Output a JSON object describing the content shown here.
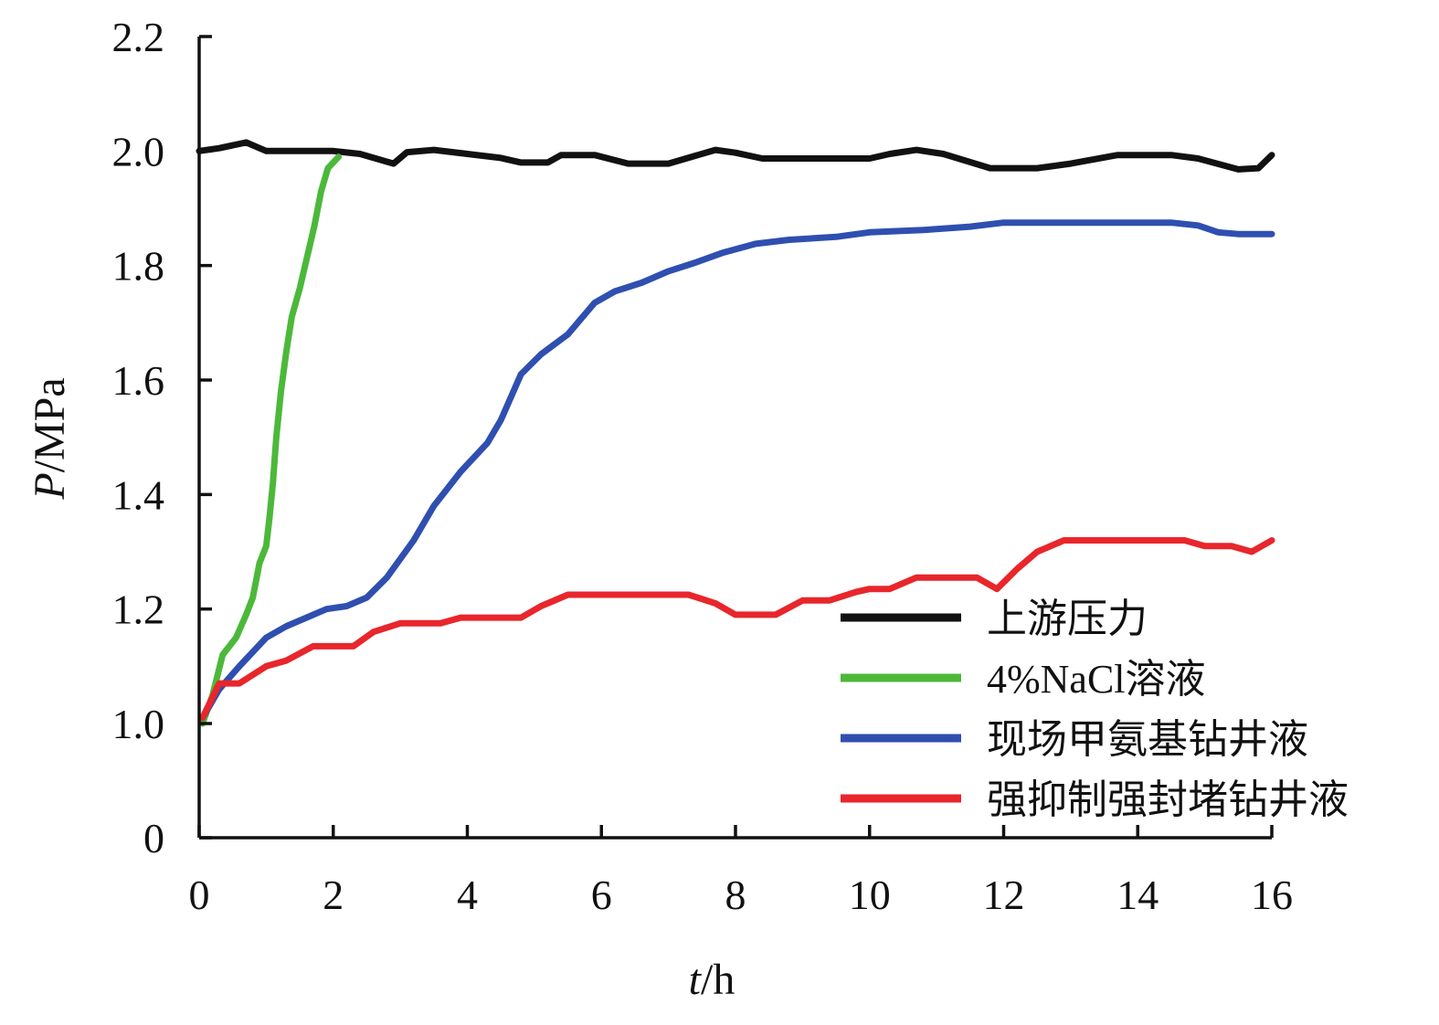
{
  "chart_data": {
    "type": "line",
    "title": "",
    "xlabel": {
      "var": "t",
      "unit": "/h"
    },
    "ylabel": {
      "var": "P",
      "unit": "/MPa"
    },
    "xlim": [
      0,
      16
    ],
    "xticks": [
      "0",
      "2",
      "4",
      "6",
      "8",
      "10",
      "12",
      "14",
      "16"
    ],
    "ylim_display": [
      0,
      2.2
    ],
    "axis_break_note": "y axis shows 0 then jumps to 1.0",
    "yticks": [
      "0",
      "1.0",
      "1.2",
      "1.4",
      "1.6",
      "1.8",
      "2.0",
      "2.2"
    ],
    "grid": false,
    "legend": {
      "position": "bottom-right"
    },
    "series": [
      {
        "name": "上游压力",
        "color": "#111111",
        "points": [
          [
            0,
            2.0
          ],
          [
            0.3,
            2.005
          ],
          [
            0.7,
            2.015
          ],
          [
            1.0,
            2.0
          ],
          [
            1.5,
            2.0
          ],
          [
            2.0,
            2.0
          ],
          [
            2.4,
            1.995
          ],
          [
            2.9,
            1.978
          ],
          [
            3.1,
            1.998
          ],
          [
            3.5,
            2.002
          ],
          [
            4.0,
            1.995
          ],
          [
            4.5,
            1.988
          ],
          [
            4.8,
            1.98
          ],
          [
            5.2,
            1.98
          ],
          [
            5.4,
            1.993
          ],
          [
            5.9,
            1.993
          ],
          [
            6.4,
            1.978
          ],
          [
            7.0,
            1.978
          ],
          [
            7.7,
            2.002
          ],
          [
            8.0,
            1.997
          ],
          [
            8.4,
            1.987
          ],
          [
            9.0,
            1.987
          ],
          [
            10.0,
            1.987
          ],
          [
            10.3,
            1.995
          ],
          [
            10.7,
            2.002
          ],
          [
            11.1,
            1.995
          ],
          [
            11.8,
            1.97
          ],
          [
            12.5,
            1.97
          ],
          [
            13.0,
            1.978
          ],
          [
            13.7,
            1.993
          ],
          [
            14.5,
            1.993
          ],
          [
            14.9,
            1.987
          ],
          [
            15.5,
            1.968
          ],
          [
            15.8,
            1.97
          ],
          [
            16.0,
            1.993
          ]
        ]
      },
      {
        "name": "4%NaCl溶液",
        "color": "#4cb83a",
        "points": [
          [
            0.05,
            1.0
          ],
          [
            0.2,
            1.05
          ],
          [
            0.35,
            1.12
          ],
          [
            0.55,
            1.15
          ],
          [
            0.7,
            1.19
          ],
          [
            0.8,
            1.22
          ],
          [
            0.9,
            1.28
          ],
          [
            1.0,
            1.31
          ],
          [
            1.05,
            1.36
          ],
          [
            1.1,
            1.42
          ],
          [
            1.15,
            1.5
          ],
          [
            1.22,
            1.58
          ],
          [
            1.3,
            1.65
          ],
          [
            1.38,
            1.71
          ],
          [
            1.5,
            1.76
          ],
          [
            1.62,
            1.82
          ],
          [
            1.72,
            1.87
          ],
          [
            1.82,
            1.93
          ],
          [
            1.92,
            1.97
          ],
          [
            2.08,
            1.99
          ]
        ]
      },
      {
        "name": "现场甲氨基钻井液",
        "color": "#2f4fb0",
        "points": [
          [
            0.05,
            1.01
          ],
          [
            0.3,
            1.06
          ],
          [
            0.6,
            1.1
          ],
          [
            1.0,
            1.15
          ],
          [
            1.3,
            1.17
          ],
          [
            1.6,
            1.185
          ],
          [
            1.9,
            1.2
          ],
          [
            2.2,
            1.205
          ],
          [
            2.5,
            1.22
          ],
          [
            2.8,
            1.255
          ],
          [
            3.2,
            1.32
          ],
          [
            3.5,
            1.38
          ],
          [
            3.9,
            1.44
          ],
          [
            4.3,
            1.49
          ],
          [
            4.5,
            1.53
          ],
          [
            4.8,
            1.61
          ],
          [
            5.1,
            1.645
          ],
          [
            5.5,
            1.68
          ],
          [
            5.9,
            1.735
          ],
          [
            6.2,
            1.755
          ],
          [
            6.6,
            1.77
          ],
          [
            7.0,
            1.79
          ],
          [
            7.4,
            1.805
          ],
          [
            7.8,
            1.822
          ],
          [
            8.3,
            1.838
          ],
          [
            8.8,
            1.845
          ],
          [
            9.5,
            1.85
          ],
          [
            10.0,
            1.858
          ],
          [
            10.8,
            1.862
          ],
          [
            11.5,
            1.868
          ],
          [
            12.0,
            1.875
          ],
          [
            13.0,
            1.875
          ],
          [
            14.5,
            1.875
          ],
          [
            14.9,
            1.87
          ],
          [
            15.2,
            1.858
          ],
          [
            15.5,
            1.855
          ],
          [
            16.0,
            1.855
          ]
        ]
      },
      {
        "name": "强抑制强封堵钻井液",
        "color": "#e8262b",
        "points": [
          [
            0.05,
            1.01
          ],
          [
            0.3,
            1.07
          ],
          [
            0.6,
            1.07
          ],
          [
            1.0,
            1.1
          ],
          [
            1.3,
            1.11
          ],
          [
            1.7,
            1.135
          ],
          [
            2.3,
            1.135
          ],
          [
            2.6,
            1.16
          ],
          [
            3.0,
            1.175
          ],
          [
            3.6,
            1.175
          ],
          [
            3.9,
            1.185
          ],
          [
            4.8,
            1.185
          ],
          [
            5.1,
            1.205
          ],
          [
            5.5,
            1.225
          ],
          [
            7.3,
            1.225
          ],
          [
            7.7,
            1.21
          ],
          [
            8.0,
            1.19
          ],
          [
            8.6,
            1.19
          ],
          [
            9.0,
            1.215
          ],
          [
            9.4,
            1.215
          ],
          [
            9.8,
            1.23
          ],
          [
            10.0,
            1.235
          ],
          [
            10.3,
            1.235
          ],
          [
            10.7,
            1.255
          ],
          [
            11.6,
            1.255
          ],
          [
            11.9,
            1.235
          ],
          [
            12.2,
            1.27
          ],
          [
            12.5,
            1.3
          ],
          [
            12.9,
            1.32
          ],
          [
            14.7,
            1.32
          ],
          [
            15.0,
            1.31
          ],
          [
            15.4,
            1.31
          ],
          [
            15.7,
            1.3
          ],
          [
            16.0,
            1.32
          ]
        ]
      }
    ]
  }
}
